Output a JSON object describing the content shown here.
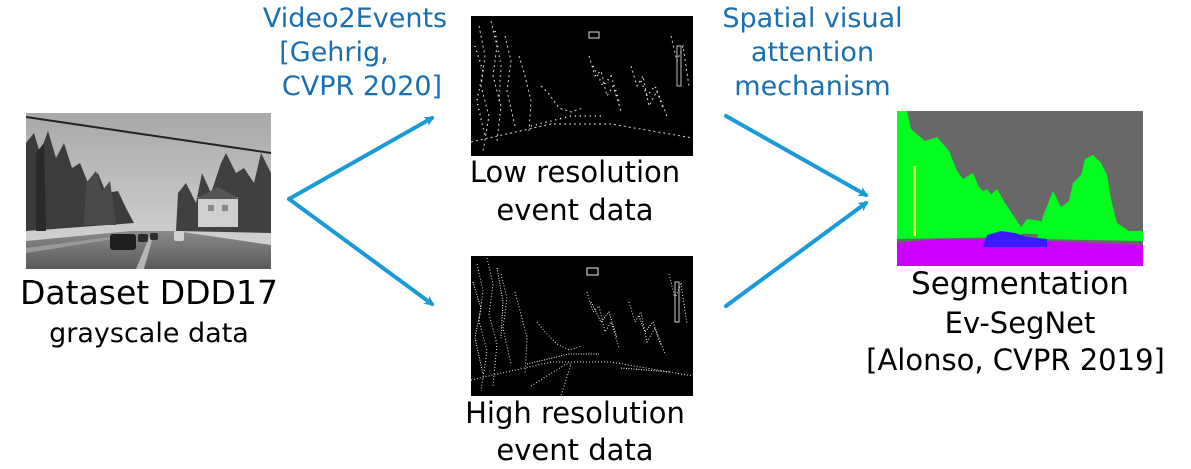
{
  "input": {
    "title": "Dataset DDD17",
    "subtitle": "grayscale data"
  },
  "conversion": {
    "line1": "Video2Events",
    "line2": "[Gehrig,",
    "line3": "CVPR 2020]"
  },
  "low_res": {
    "line1": "Low resolution",
    "line2": "event data"
  },
  "high_res": {
    "line1": "High resolution",
    "line2": "event data"
  },
  "attention": {
    "line1": "Spatial visual",
    "line2": "attention",
    "line3": "mechanism"
  },
  "output": {
    "title": "Segmentation",
    "model": "Ev-SegNet",
    "citation": "[Alonso, CVPR 2019]"
  },
  "colors": {
    "arrow": "#1a9bd7",
    "label_blue": "#1a6fb0",
    "seg_sky": "#686868",
    "seg_vegetation": "#00ff1e",
    "seg_road": "#cc00ff",
    "seg_vehicle": "#3a1aff",
    "seg_pole": "#e8ff44"
  }
}
